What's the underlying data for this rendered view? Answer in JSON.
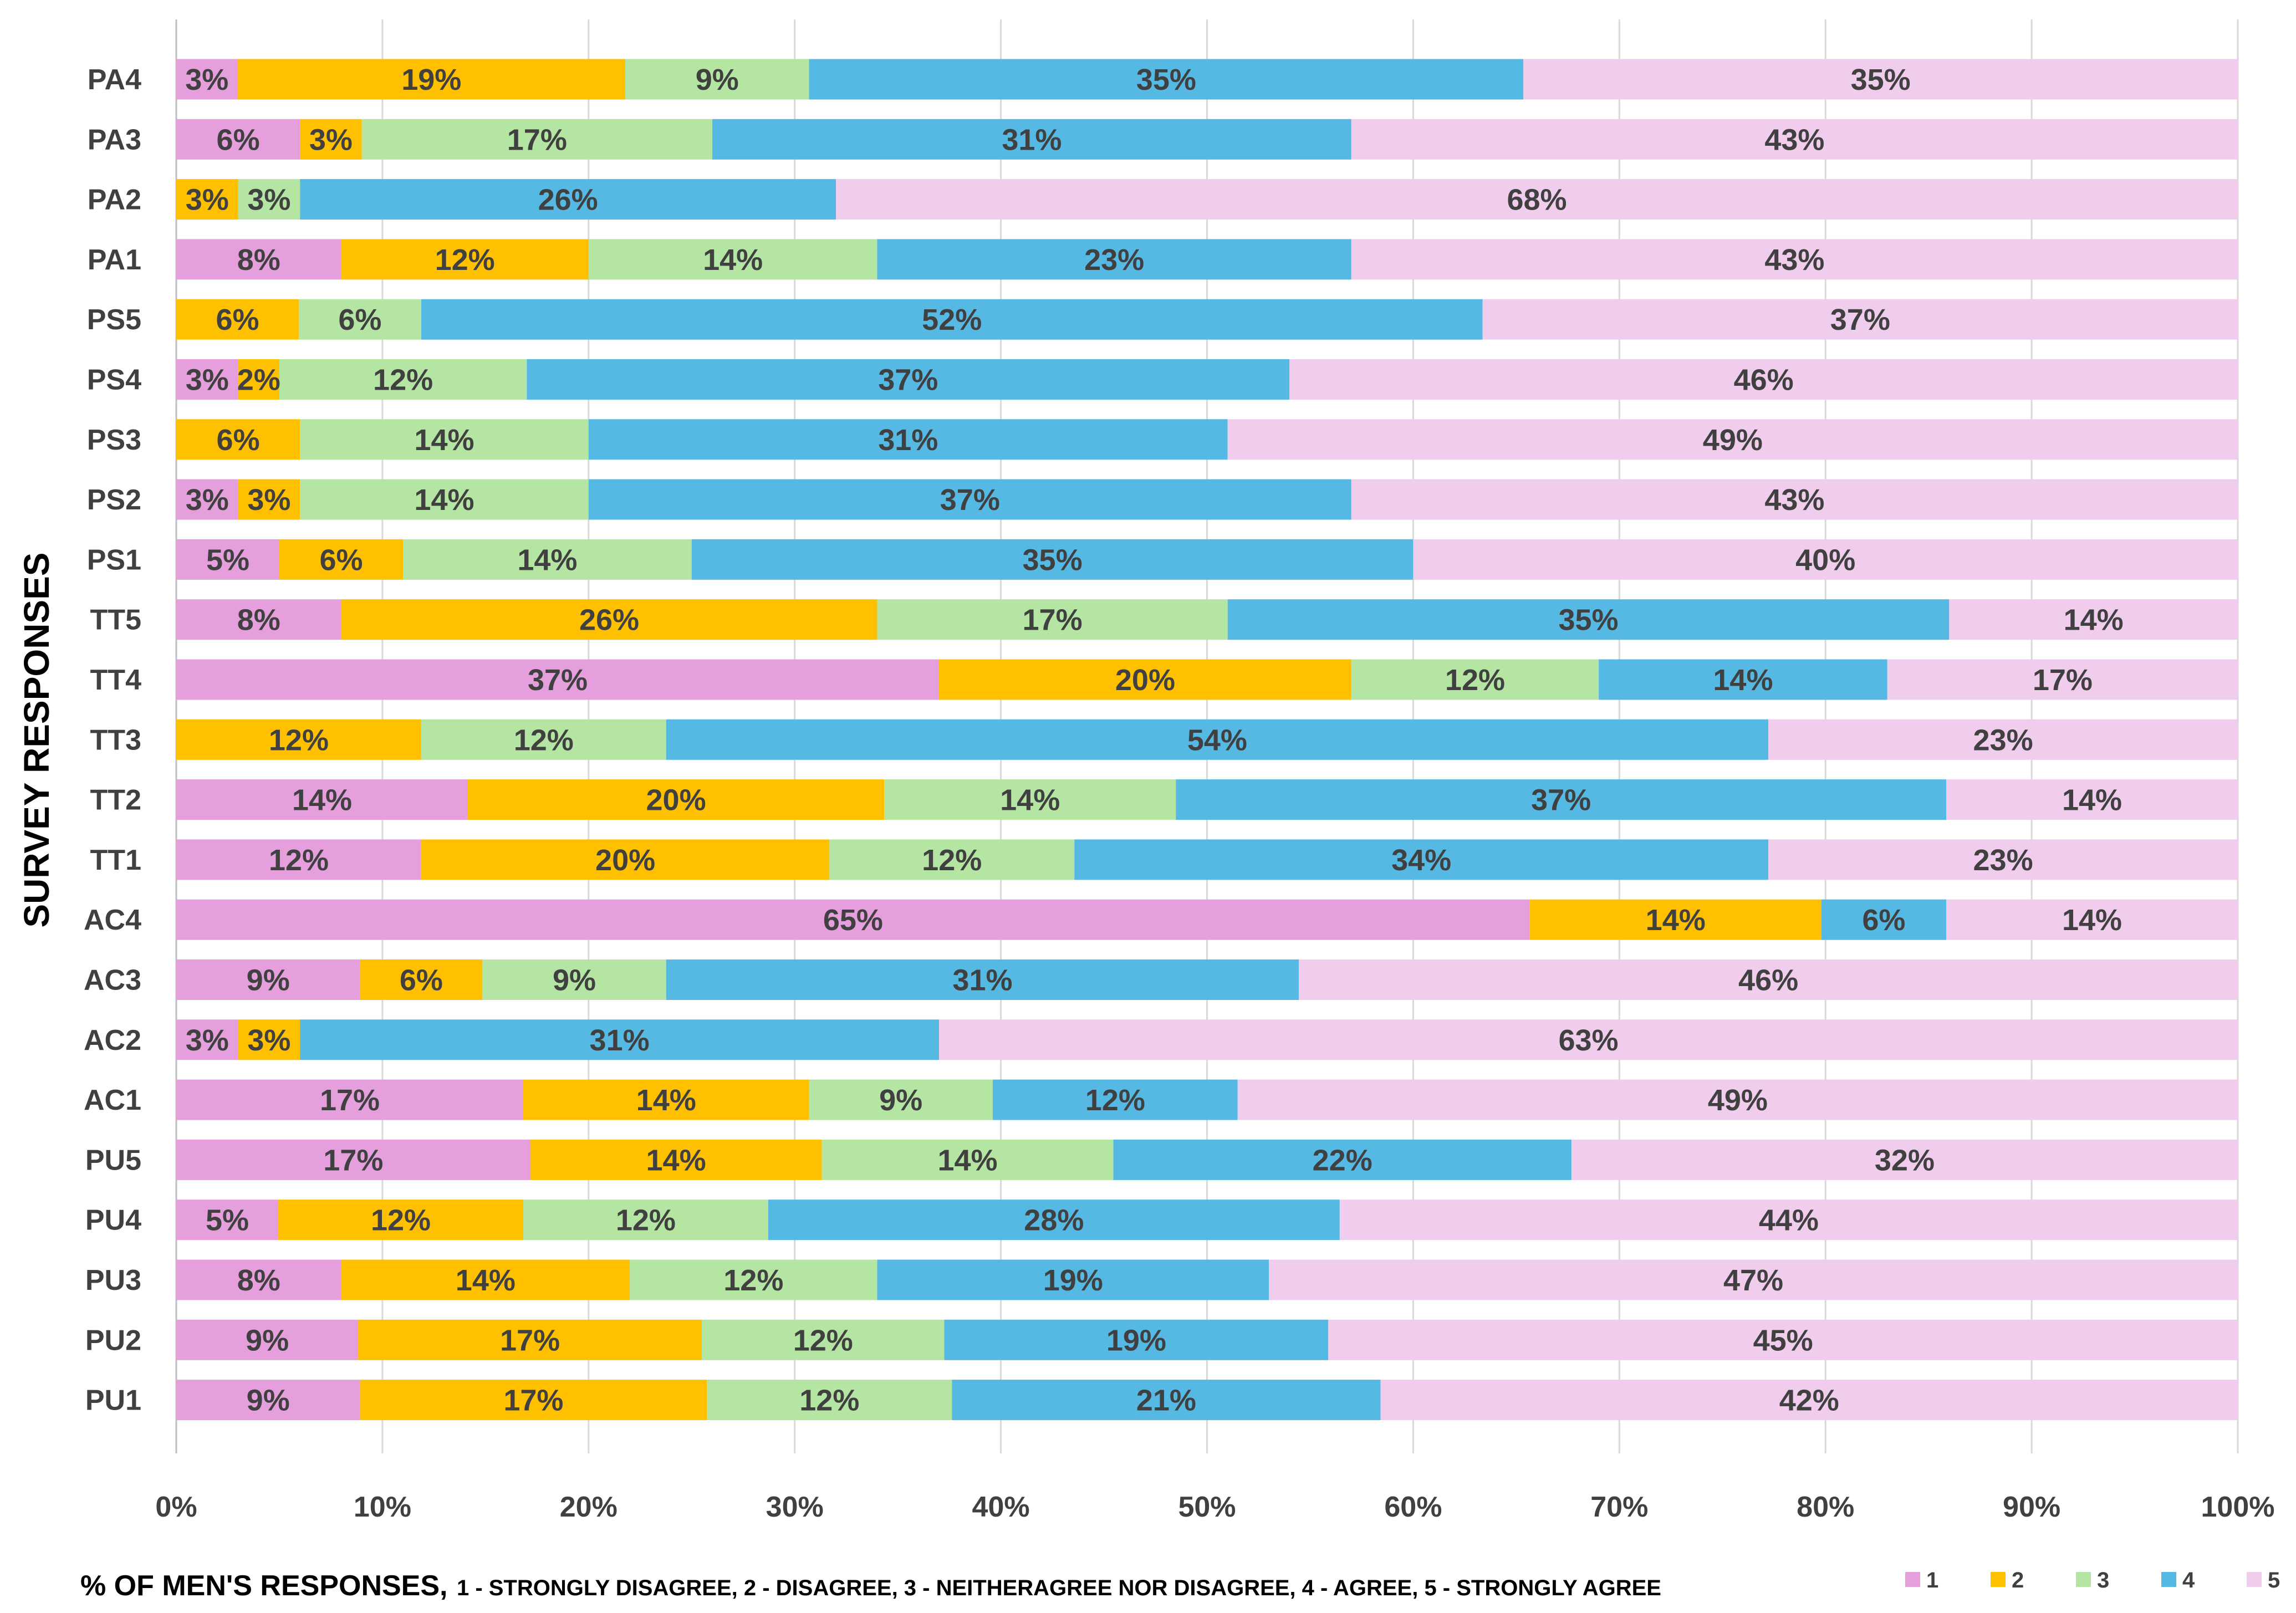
{
  "chart_data": {
    "type": "bar",
    "orientation": "horizontal",
    "stacked": true,
    "percent_stacked": true,
    "ylabel": "SURVEY RESPONSES",
    "xlabel": {
      "main": "% OF MEN'S RESPONSES,",
      "sub": "1 - STRONGLY DISAGREE, 2 - DISAGREE, 3 - NEITHERAGREE NOR DISAGREE, 4 - AGREE, 5 - STRONGLY AGREE"
    },
    "xlim": [
      0,
      100
    ],
    "x_ticks": [
      "0%",
      "10%",
      "20%",
      "30%",
      "40%",
      "50%",
      "60%",
      "70%",
      "80%",
      "90%",
      "100%"
    ],
    "grid": "vertical",
    "legend_position": "bottom-right",
    "categories": [
      "PA4",
      "PA3",
      "PA2",
      "PA1",
      "PS5",
      "PS4",
      "PS3",
      "PS2",
      "PS1",
      "TT5",
      "TT4",
      "TT3",
      "TT2",
      "TT1",
      "AC4",
      "AC3",
      "AC2",
      "AC1",
      "PU5",
      "PU4",
      "PU3",
      "PU2",
      "PU1"
    ],
    "series": [
      {
        "name": "1",
        "color": "#e49fdc",
        "values": [
          3,
          6,
          0,
          8,
          0,
          3,
          0,
          3,
          5,
          8,
          37,
          0,
          14,
          12,
          65,
          9,
          3,
          17,
          17,
          5,
          8,
          9,
          9
        ]
      },
      {
        "name": "2",
        "color": "#ffc000",
        "values": [
          19,
          3,
          3,
          12,
          6,
          2,
          6,
          3,
          6,
          26,
          20,
          12,
          20,
          20,
          14,
          6,
          3,
          14,
          14,
          12,
          14,
          17,
          17
        ]
      },
      {
        "name": "3",
        "color": "#b4e5a2",
        "values": [
          9,
          17,
          3,
          14,
          6,
          12,
          14,
          14,
          14,
          17,
          12,
          12,
          14,
          12,
          0,
          9,
          0,
          9,
          14,
          12,
          12,
          12,
          12
        ]
      },
      {
        "name": "4",
        "color": "#55b9e4",
        "values": [
          35,
          31,
          26,
          23,
          52,
          37,
          31,
          37,
          35,
          35,
          14,
          54,
          37,
          34,
          6,
          31,
          31,
          12,
          22,
          28,
          19,
          19,
          21
        ]
      },
      {
        "name": "5",
        "color": "#f0cded",
        "values": [
          35,
          43,
          68,
          43,
          37,
          46,
          49,
          43,
          40,
          14,
          17,
          23,
          14,
          23,
          14,
          46,
          63,
          49,
          32,
          44,
          47,
          45,
          42
        ]
      }
    ]
  }
}
